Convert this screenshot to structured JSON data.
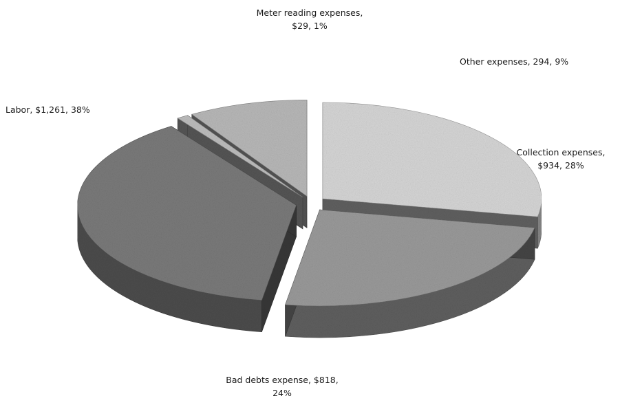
{
  "chart_data": {
    "type": "pie",
    "style": "3d-exploded",
    "title": "",
    "legend": "none",
    "slices": [
      {
        "name": "Collection expenses",
        "value": 934,
        "percent": 28,
        "label": [
          "Collection expenses,",
          "$934, 28%"
        ],
        "color": "#d6d6d6"
      },
      {
        "name": "Bad debts expense",
        "value": 818,
        "percent": 24,
        "label": [
          "Bad debts expense, $818,",
          "24%"
        ],
        "color": "#9a9a9a"
      },
      {
        "name": "Labor",
        "value": 1261,
        "percent": 38,
        "label": [
          "Labor, $1,261, 38%"
        ],
        "color": "#7a7a7a"
      },
      {
        "name": "Meter reading expenses",
        "value": 29,
        "percent": 1,
        "label": [
          "Meter reading expenses,",
          "$29, 1%"
        ],
        "color": "#bdbdbd"
      },
      {
        "name": "Other expenses",
        "value": 294,
        "percent": 9,
        "label": [
          "Other expenses, 294, 9%"
        ],
        "color": "#b8b8b8"
      }
    ]
  }
}
